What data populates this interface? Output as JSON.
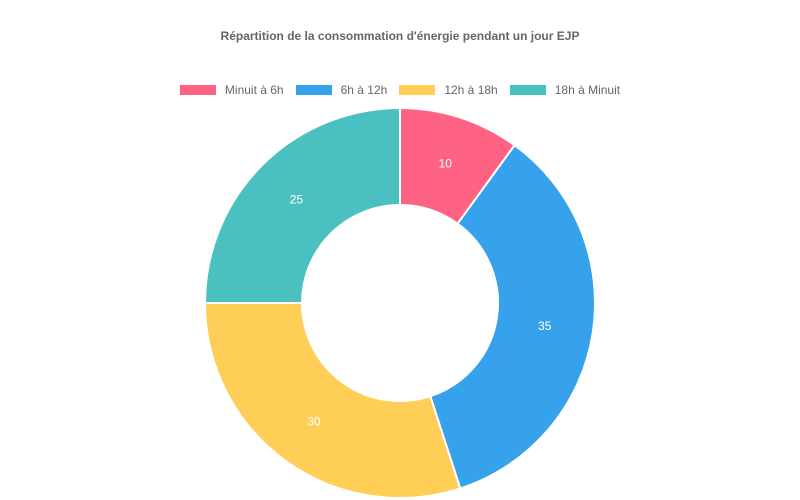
{
  "chart_data": {
    "type": "pie",
    "subtype": "doughnut",
    "title": "Répartition de la consommation d'énergie pendant un jour EJP",
    "categories": [
      "Minuit à 6h",
      "6h à 12h",
      "12h à 18h",
      "18h à Minuit"
    ],
    "values": [
      10,
      35,
      30,
      25
    ],
    "colors": [
      "#FF6384",
      "#36A2EB",
      "#FFCE56",
      "#4BC0C0"
    ],
    "legend_position": "top"
  }
}
